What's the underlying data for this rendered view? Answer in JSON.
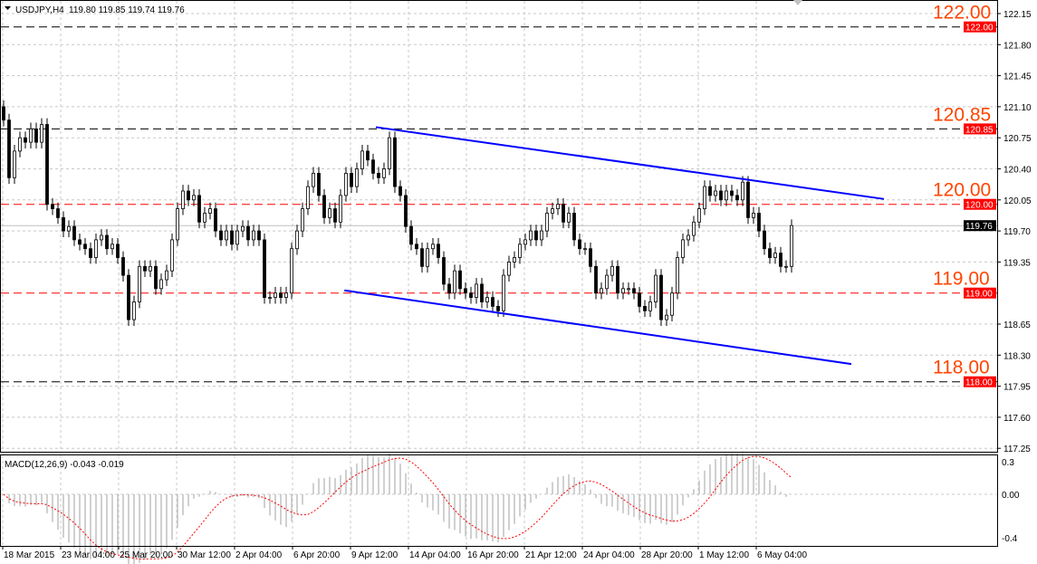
{
  "header": {
    "symbol_info": "USDJPY,H4",
    "ohlc": "119.80 119.85 119.74 119.76"
  },
  "indicator": {
    "label": "MACD(12,26,9) -0.043 -0.019"
  },
  "colors": {
    "bull": "#000000",
    "bear": "#000000",
    "level_red": "#ff0000",
    "level_black": "#000000",
    "level_text": "#ff4500",
    "channel": "#0000ff",
    "histogram": "#c0c0c0",
    "signal": "#ff0000",
    "current_price_bg": "#000000"
  },
  "chart_data": {
    "type": "candlestick",
    "symbol": "USDJPY",
    "timeframe": "H4",
    "ylim": [
      117.2,
      122.3
    ],
    "y_ticks": [
      "122.15",
      "121.80",
      "121.45",
      "121.10",
      "120.75",
      "120.40",
      "120.05",
      "119.70",
      "119.35",
      "118.65",
      "118.30",
      "117.95",
      "117.60",
      "117.25"
    ],
    "x_ticks": [
      "18 Mar 2015",
      "23 Mar 04:00",
      "25 Mar 20:00",
      "30 Mar 12:00",
      "2 Apr 04:00",
      "6 Apr 20:00",
      "9 Apr 12:00",
      "14 Apr 04:00",
      "16 Apr 20:00",
      "21 Apr 12:00",
      "24 Apr 04:00",
      "28 Apr 20:00",
      "1 May 12:00",
      "6 May 04:00"
    ],
    "closes": [
      120.95,
      120.3,
      120.6,
      120.75,
      120.7,
      120.85,
      120.7,
      120.9,
      120.0,
      119.95,
      119.85,
      119.7,
      119.75,
      119.6,
      119.55,
      119.5,
      119.4,
      119.6,
      119.65,
      119.5,
      119.55,
      119.4,
      119.2,
      118.7,
      118.9,
      119.3,
      119.25,
      119.3,
      119.05,
      119.15,
      119.25,
      119.6,
      119.95,
      120.15,
      120.05,
      120.1,
      119.8,
      119.9,
      119.95,
      119.7,
      119.6,
      119.7,
      119.55,
      119.7,
      119.75,
      119.6,
      119.7,
      119.6,
      118.95,
      118.95,
      119.0,
      118.95,
      119.0,
      119.5,
      119.7,
      119.95,
      120.2,
      120.35,
      120.1,
      119.85,
      119.95,
      119.8,
      120.1,
      120.35,
      120.2,
      120.4,
      120.6,
      120.5,
      120.35,
      120.3,
      120.4,
      120.75,
      120.2,
      120.1,
      119.75,
      119.55,
      119.5,
      119.3,
      119.5,
      119.55,
      119.4,
      119.1,
      119.0,
      119.25,
      119.05,
      119.0,
      118.95,
      119.1,
      118.9,
      118.95,
      118.85,
      118.8,
      119.2,
      119.35,
      119.4,
      119.55,
      119.6,
      119.7,
      119.6,
      119.7,
      119.9,
      119.95,
      120.0,
      119.8,
      119.9,
      119.6,
      119.5,
      119.5,
      119.3,
      119.0,
      119.05,
      119.2,
      119.3,
      119.0,
      119.05,
      119.05,
      119.0,
      118.85,
      118.8,
      118.9,
      119.2,
      118.7,
      118.75,
      119.0,
      119.4,
      119.6,
      119.65,
      119.8,
      119.95,
      120.2,
      120.1,
      120.15,
      120.05,
      120.15,
      120.1,
      120.05,
      120.25,
      119.85,
      119.9,
      119.7,
      119.5,
      119.4,
      119.45,
      119.3,
      119.3,
      119.76
    ],
    "first_open": 121.1,
    "current_price": "119.76",
    "levels": [
      {
        "price": "122.00",
        "style": "black"
      },
      {
        "price": "120.85",
        "style": "black"
      },
      {
        "price": "120.00",
        "style": "red"
      },
      {
        "price": "119.00",
        "style": "red"
      },
      {
        "price": "118.00",
        "style": "black"
      }
    ],
    "channel": {
      "upper": [
        {
          "bar": 68.5,
          "price": 120.87
        },
        {
          "bar": 162,
          "price": 120.06
        }
      ],
      "lower": [
        {
          "bar": 62.7,
          "price": 119.03
        },
        {
          "bar": 156,
          "price": 118.2
        }
      ]
    },
    "macd": {
      "fast": 12,
      "slow": 26,
      "signal": 9,
      "ylim": [
        -0.4,
        0.3
      ],
      "y_ticks": [
        "0.3",
        "0.00",
        "-0.4"
      ]
    }
  }
}
